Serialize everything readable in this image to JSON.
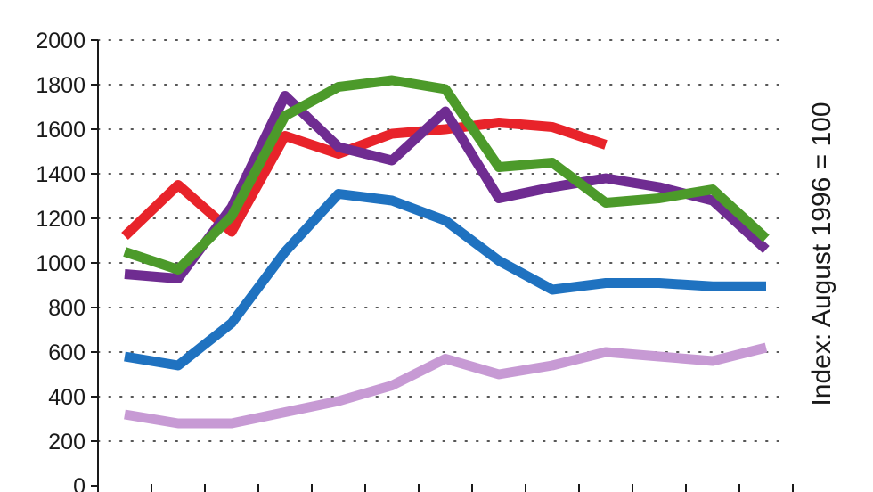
{
  "chart_data": {
    "type": "line",
    "title": "",
    "xlabel": "",
    "ylabel": "Index: August 1996 = 100",
    "ylim": [
      0,
      2000
    ],
    "y_ticks": [
      "0",
      "200",
      "400",
      "600",
      "800",
      "1000",
      "1200",
      "1400",
      "1600",
      "1800",
      "2000"
    ],
    "grid": true,
    "x": [
      1,
      2,
      3,
      4,
      5,
      6,
      7,
      8,
      9,
      10,
      11,
      12,
      13
    ],
    "series": [
      {
        "color": "#e8232a",
        "values": [
          1120,
          1350,
          1140,
          1570,
          1490,
          1580,
          1600,
          1630,
          1610,
          1530,
          null,
          null,
          null
        ]
      },
      {
        "color": "#6f2c91",
        "values": [
          950,
          930,
          1250,
          1750,
          1520,
          1460,
          1680,
          1290,
          1340,
          1380,
          1340,
          1280,
          1060
        ]
      },
      {
        "color": "#4c9a2a",
        "values": [
          1050,
          970,
          1210,
          1660,
          1790,
          1820,
          1780,
          1430,
          1450,
          1270,
          1290,
          1330,
          1110
        ]
      },
      {
        "color": "#1f72c0",
        "values": [
          580,
          540,
          730,
          1050,
          1310,
          1280,
          1190,
          1010,
          880,
          910,
          910,
          895,
          895
        ]
      },
      {
        "color": "#c79ad4",
        "values": [
          320,
          280,
          280,
          330,
          380,
          450,
          570,
          500,
          540,
          600,
          580,
          560,
          620
        ]
      }
    ]
  }
}
